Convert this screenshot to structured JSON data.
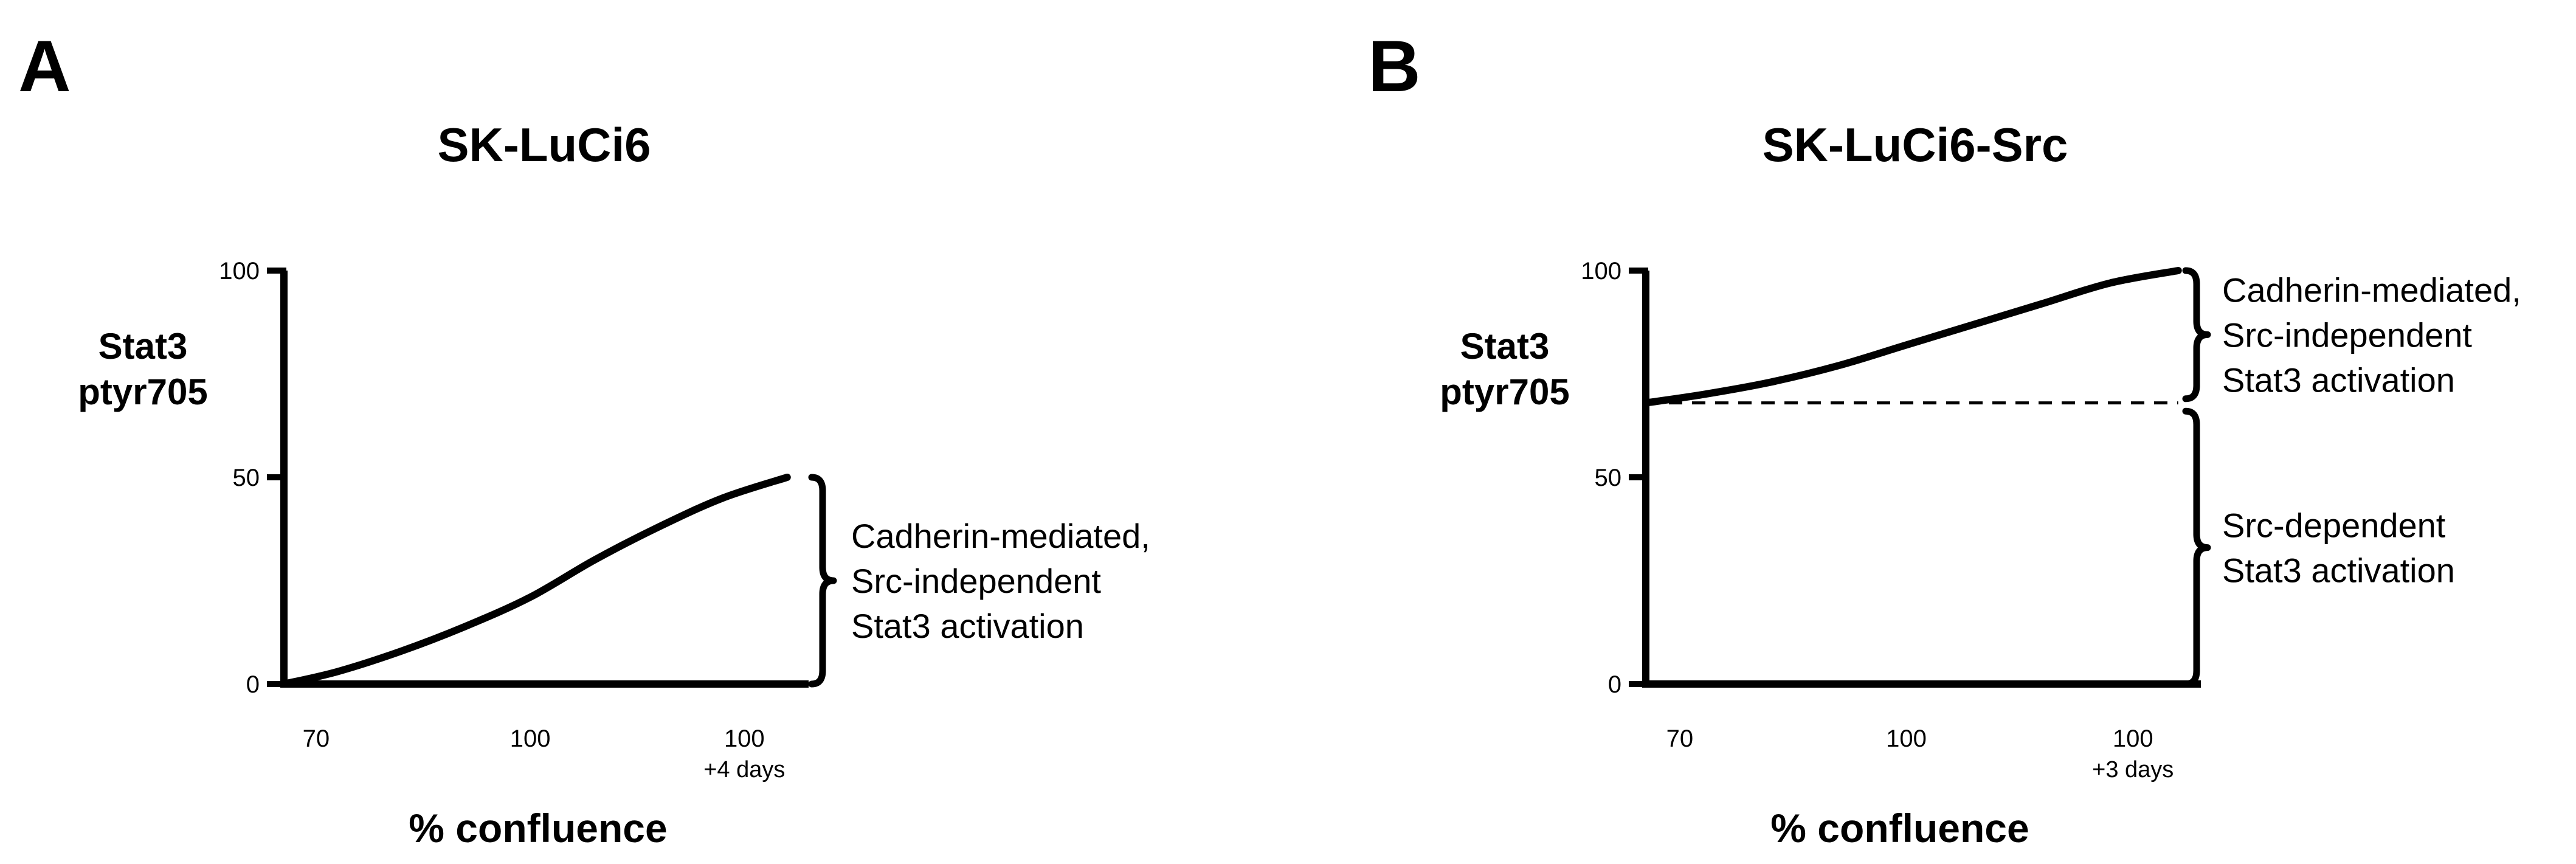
{
  "chart_data": [
    {
      "panel_letter": "A",
      "type": "line",
      "title": "SK-LuCi6",
      "xlabel": "% confluence",
      "ylabel": [
        "Stat3",
        "ptyr705"
      ],
      "y_ticks": [
        0,
        50,
        100
      ],
      "ylim": [
        0,
        100
      ],
      "x_ticks": [
        {
          "pos": 0,
          "label": "70",
          "sublabel": ""
        },
        {
          "pos": 1,
          "label": "100",
          "sublabel": ""
        },
        {
          "pos": 2,
          "label": "100",
          "sublabel": "+4 days"
        }
      ],
      "xlim": [
        -0.15,
        2.3
      ],
      "grid": false,
      "series": [
        {
          "style": "solid",
          "x": [
            -0.15,
            0.1,
            0.4,
            0.7,
            1.0,
            1.3,
            1.6,
            1.9,
            2.2
          ],
          "y": [
            0,
            3,
            8,
            14,
            21,
            30,
            38,
            45,
            50
          ]
        }
      ],
      "annotations": [
        {
          "range": [
            0,
            50
          ],
          "text": [
            "Cadherin-mediated,",
            "Src-independent",
            "Stat3 activation"
          ]
        }
      ]
    },
    {
      "panel_letter": "B",
      "type": "line",
      "title": "SK-LuCi6-Src",
      "xlabel": "% confluence",
      "ylabel": [
        "Stat3",
        "ptyr705"
      ],
      "y_ticks": [
        0,
        50,
        100
      ],
      "ylim": [
        0,
        100
      ],
      "x_ticks": [
        {
          "pos": 0,
          "label": "70",
          "sublabel": ""
        },
        {
          "pos": 1,
          "label": "100",
          "sublabel": ""
        },
        {
          "pos": 2,
          "label": "100",
          "sublabel": "+3 days"
        }
      ],
      "xlim": [
        -0.15,
        2.3
      ],
      "grid": false,
      "series": [
        {
          "style": "solid",
          "x": [
            -0.15,
            0.1,
            0.4,
            0.7,
            1.0,
            1.3,
            1.6,
            1.9,
            2.2
          ],
          "y": [
            68,
            70,
            73,
            77,
            82,
            87,
            92,
            97,
            100
          ]
        },
        {
          "style": "dashed",
          "x": [
            -0.15,
            2.2
          ],
          "y": [
            68,
            68
          ]
        }
      ],
      "annotations": [
        {
          "range": [
            69,
            100
          ],
          "text": [
            "Cadherin-mediated,",
            "Src-independent",
            "Stat3 activation"
          ]
        },
        {
          "range": [
            0,
            66
          ],
          "text": [
            "Src-dependent",
            "Stat3 activation"
          ]
        }
      ]
    }
  ]
}
